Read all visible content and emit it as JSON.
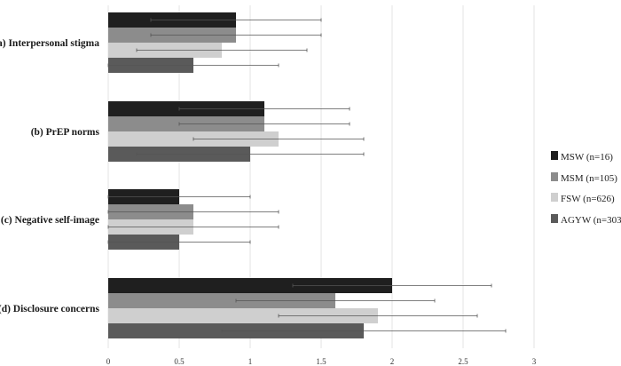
{
  "chart_data": {
    "type": "bar",
    "orientation": "horizontal",
    "categories": [
      "(a) Interpersonal stigma",
      "(b) PrEP norms",
      "(c) Negative self-image",
      "(d) Disclosure concerns"
    ],
    "series": [
      {
        "name": "MSW (n=16)",
        "color": "#1f1f1f",
        "values": [
          0.9,
          1.1,
          0.5,
          2.0
        ],
        "error_low": [
          0.3,
          0.5,
          0.0,
          1.3
        ],
        "error_high": [
          1.5,
          1.7,
          1.0,
          2.7
        ]
      },
      {
        "name": "MSM (n=105)",
        "color": "#8c8c8c",
        "values": [
          0.9,
          1.1,
          0.6,
          1.6
        ],
        "error_low": [
          0.3,
          0.5,
          0.0,
          0.9
        ],
        "error_high": [
          1.5,
          1.7,
          1.2,
          2.3
        ]
      },
      {
        "name": "FSW (n=626)",
        "color": "#cfcfcf",
        "values": [
          0.8,
          1.2,
          0.6,
          1.9
        ],
        "error_low": [
          0.2,
          0.6,
          0.0,
          1.2
        ],
        "error_high": [
          1.4,
          1.8,
          1.2,
          2.6
        ]
      },
      {
        "name": "AGYW (n=303)",
        "color": "#5a5a5a",
        "values": [
          0.6,
          1.0,
          0.5,
          1.8
        ],
        "error_low": [
          0.0,
          0.2,
          0.0,
          0.8
        ],
        "error_high": [
          1.2,
          1.8,
          1.0,
          2.8
        ]
      }
    ],
    "xlim": [
      0,
      3
    ],
    "xticks": [
      "0",
      "0.5",
      "1",
      "1.5",
      "2",
      "2.5",
      "3"
    ],
    "grid": "vertical",
    "legend_position": "right"
  }
}
